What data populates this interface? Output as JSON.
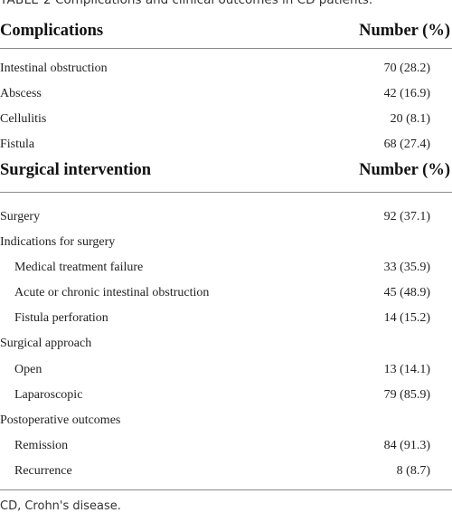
{
  "caption": {
    "label": "TABLE 2",
    "text": "Complications and clinical outcomes in CD patients."
  },
  "section1": {
    "header": {
      "col1": "Complications",
      "col2": "Number (%)"
    },
    "rows": [
      {
        "label": "Intestinal obstruction",
        "value": "70 (28.2)"
      },
      {
        "label": "Abscess",
        "value": "42 (16.9)"
      },
      {
        "label": "Cellulitis",
        "value": "20 (8.1)"
      },
      {
        "label": "Fistula",
        "value": "68 (27.4)"
      }
    ]
  },
  "section2": {
    "header": {
      "col1": "Surgical intervention",
      "col2": "Number (%)"
    },
    "rows": [
      {
        "label": "Surgery",
        "value": "92 (37.1)"
      },
      {
        "label": "Indications for surgery",
        "value": ""
      },
      {
        "label": "Medical treatment failure",
        "value": "33 (35.9)"
      },
      {
        "label": "Acute or chronic intestinal obstruction",
        "value": "45 (48.9)"
      },
      {
        "label": "Fistula perforation",
        "value": "14 (15.2)"
      },
      {
        "label": "Surgical approach",
        "value": ""
      },
      {
        "label": "Open",
        "value": "13 (14.1)"
      },
      {
        "label": "Laparoscopic",
        "value": "79 (85.9)"
      },
      {
        "label": "Postoperative outcomes",
        "value": ""
      },
      {
        "label": "Remission",
        "value": "84 (91.3)"
      },
      {
        "label": "Recurrence",
        "value": "8 (8.7)"
      }
    ]
  },
  "footnote": "CD, Crohn's disease."
}
